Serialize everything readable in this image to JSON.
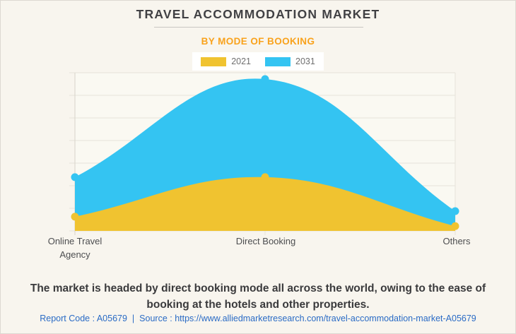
{
  "header": {
    "title": "TRAVEL ACCOMMODATION MARKET",
    "subtitle": "BY MODE OF BOOKING"
  },
  "caption": "The market is headed by direct booking mode all across the world, owing to the ease of booking at the hotels and other properties.",
  "footer": {
    "report_code": "Report Code : A05679",
    "separator": "|",
    "source": "Source : https://www.alliedmarketresearch.com/travel-accommodation-market-A05679"
  },
  "colors": {
    "page_bg": "#f8f5ee",
    "plot_bg": "#faf9f2",
    "gridline": "#e6e3da",
    "axis_line": "#d7d4ca",
    "title_text": "#414144",
    "subtitle_orange": "#f9a21c",
    "series_2021_yellow": "#f0c330",
    "series_2031_blue": "#34c4f2",
    "footer_link_blue": "#2a6bc5"
  },
  "chart_data": {
    "type": "area",
    "title": "TRAVEL ACCOMMODATION MARKET",
    "subtitle": "BY MODE OF BOOKING",
    "categories": [
      "Online Travel Agency",
      "Direct Booking",
      "Others"
    ],
    "series": [
      {
        "name": "2021",
        "color": "#f0c330",
        "values_relative": [
          0.09,
          0.34,
          0.03
        ]
      },
      {
        "name": "2031",
        "color": "#34c4f2",
        "values_relative": [
          0.34,
          0.96,
          0.125
        ]
      }
    ],
    "y_axis": {
      "tick_labels_visible": false,
      "gridline_count": 8
    },
    "x_axis": {
      "tick_labels_visible": true
    },
    "grid": true,
    "legend_position": "top",
    "point_markers": true,
    "curve": "smooth-bezier"
  }
}
